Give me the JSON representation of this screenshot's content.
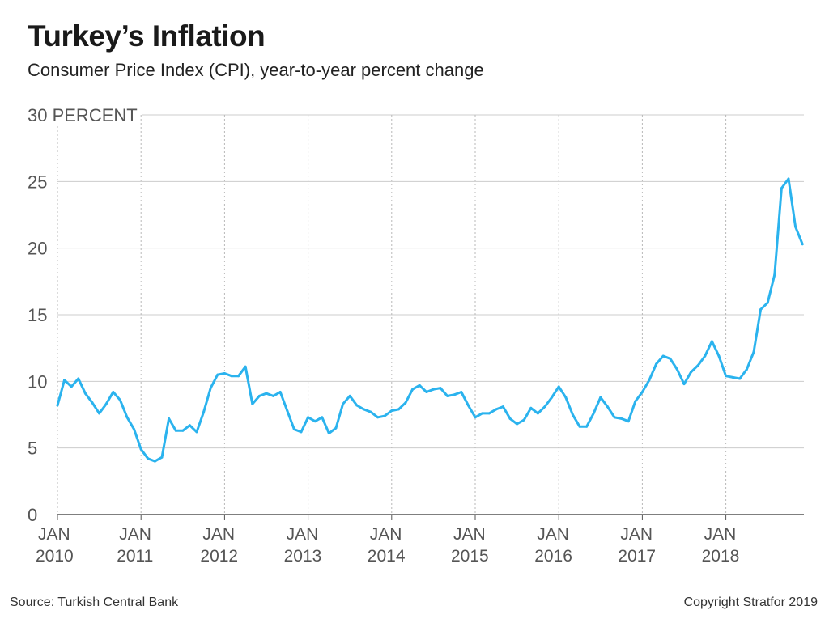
{
  "header": {
    "title": "Turkey’s Inflation",
    "subtitle": "Consumer Price Index (CPI), year-to-year percent change"
  },
  "footer": {
    "source": "Source: Turkish Central Bank",
    "copyright": "Copyright Stratfor 2019"
  },
  "colors": {
    "line": "#2bb3ee",
    "grid": "#cccccc",
    "axis": "#555555",
    "text": "#555555"
  },
  "chart_data": {
    "type": "line",
    "title": "Turkey’s Inflation",
    "subtitle": "Consumer Price Index (CPI), year-to-year percent change",
    "y_unit_label": "30 PERCENT",
    "ylim": [
      0,
      30
    ],
    "yticks": [
      {
        "value": 0,
        "label": "0"
      },
      {
        "value": 5,
        "label": "5"
      },
      {
        "value": 10,
        "label": "10"
      },
      {
        "value": 15,
        "label": "15"
      },
      {
        "value": 20,
        "label": "20"
      },
      {
        "value": 25,
        "label": "25"
      },
      {
        "value": 30,
        "label": "30 PERCENT"
      }
    ],
    "xticks": [
      {
        "month": "JAN",
        "year": "2010"
      },
      {
        "month": "JAN",
        "year": "2011"
      },
      {
        "month": "JAN",
        "year": "2012"
      },
      {
        "month": "JAN",
        "year": "2013"
      },
      {
        "month": "JAN",
        "year": "2014"
      },
      {
        "month": "JAN",
        "year": "2015"
      },
      {
        "month": "JAN",
        "year": "2016"
      },
      {
        "month": "JAN",
        "year": "2017"
      },
      {
        "month": "JAN",
        "year": "2018"
      }
    ],
    "x_start": "2010-01",
    "x_end": "2018-12",
    "grid": "vertical dotted at each January, horizontal solid at each y tick",
    "series": [
      {
        "values": [
          8.2,
          10.1,
          9.6,
          10.2,
          9.1,
          8.4,
          7.6,
          8.3,
          9.2,
          8.6,
          7.3,
          6.4,
          4.9,
          4.2,
          4.0,
          4.3,
          7.2,
          6.3,
          6.3,
          6.7,
          6.2,
          7.7,
          9.5,
          10.5,
          10.6,
          10.4,
          10.4,
          11.1,
          8.3,
          8.9,
          9.1,
          8.9,
          9.2,
          7.8,
          6.4,
          6.2,
          7.3,
          7.0,
          7.3,
          6.1,
          6.5,
          8.3,
          8.9,
          8.2,
          7.9,
          7.7,
          7.3,
          7.4,
          7.8,
          7.9,
          8.4,
          9.4,
          9.7,
          9.2,
          9.4,
          9.5,
          8.9,
          9.0,
          9.2,
          8.2,
          7.3,
          7.6,
          7.6,
          7.9,
          8.1,
          7.2,
          6.8,
          7.1,
          8.0,
          7.6,
          8.1,
          8.8,
          9.6,
          8.8,
          7.5,
          6.6,
          6.6,
          7.6,
          8.8,
          8.1,
          7.3,
          7.2,
          7.0,
          8.5,
          9.2,
          10.1,
          11.3,
          11.9,
          11.7,
          10.9,
          9.8,
          10.7,
          11.2,
          11.9,
          13.0,
          11.9,
          10.4,
          10.3,
          10.2,
          10.9,
          12.2,
          15.4,
          15.9,
          18.0,
          24.5,
          25.2,
          21.6,
          20.3
        ]
      }
    ]
  }
}
